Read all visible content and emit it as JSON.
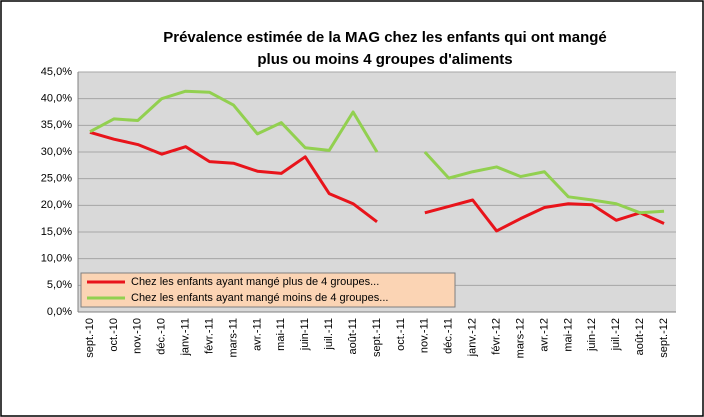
{
  "chart_data": {
    "type": "line",
    "title": [
      "Prévalence estimée de la MAG chez les enfants qui ont mangé",
      "plus ou moins 4 groupes d'aliments"
    ],
    "categories": [
      "sept.-10",
      "oct.-10",
      "nov.-10",
      "déc.-10",
      "janv.-11",
      "févr.-11",
      "mars-11",
      "avr.-11",
      "mai-11",
      "juin-11",
      "juil.-11",
      "août-11",
      "sept.-11",
      "oct.-11",
      "nov.-11",
      "déc.-11",
      "janv.-12",
      "févr.-12",
      "mars-12",
      "avr.-12",
      "mai-12",
      "juin-12",
      "juil.-12",
      "août-12",
      "sept.-12"
    ],
    "series": [
      {
        "name": "Chez les enfants ayant mangé plus de 4 groupes...",
        "color": "#e8141b",
        "values": [
          33.7,
          32.4,
          31.4,
          29.6,
          31.0,
          28.2,
          27.9,
          26.4,
          26.0,
          29.1,
          22.2,
          20.3,
          16.9,
          null,
          18.6,
          19.8,
          21.0,
          15.2,
          17.5,
          19.6,
          20.3,
          20.1,
          17.2,
          18.6,
          16.6
        ]
      },
      {
        "name": "Chez les enfants ayant mangé moins de 4 groupes...",
        "color": "#92d050",
        "values": [
          33.8,
          36.2,
          35.9,
          40.0,
          41.4,
          41.2,
          38.8,
          33.4,
          35.5,
          30.8,
          30.3,
          37.5,
          30.0,
          null,
          30.0,
          25.1,
          26.3,
          27.2,
          25.4,
          26.3,
          21.6,
          21.0,
          20.3,
          18.6,
          18.9
        ]
      }
    ],
    "ylim": [
      0,
      45
    ],
    "yticks": [
      {
        "value": 0,
        "label": "0,0%"
      },
      {
        "value": 5,
        "label": "5,0%"
      },
      {
        "value": 10,
        "label": "10,0%"
      },
      {
        "value": 15,
        "label": "15,0%"
      },
      {
        "value": 20,
        "label": "20,0%"
      },
      {
        "value": 25,
        "label": "25,0%"
      },
      {
        "value": 30,
        "label": "30,0%"
      },
      {
        "value": 35,
        "label": "35,0%"
      },
      {
        "value": 40,
        "label": "40,0%"
      },
      {
        "value": 45,
        "label": "45,0%"
      }
    ],
    "grid": true,
    "legend": "lower-left"
  }
}
